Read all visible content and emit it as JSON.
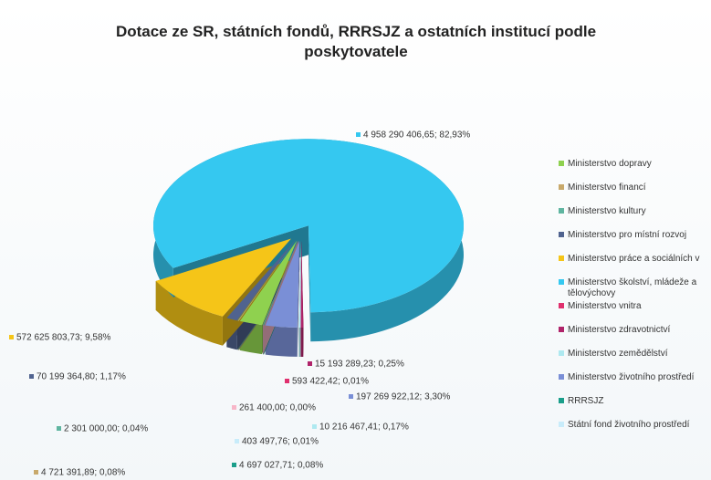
{
  "chart_data": {
    "type": "pie",
    "title": "Dotace ze SR, státních fondů, RRRSJZ a ostatních institucí podle poskytovatele",
    "categories": [
      "Ministerstvo dopravy",
      "Ministerstvo financí",
      "Ministerstvo kultury",
      "Ministerstvo pro místní rozvoj",
      "Ministerstvo práce a sociálních v",
      "Ministerstvo školství, mládeže a tělovýchovy",
      "Ministerstvo vnitra",
      "Ministerstvo zdravotnictví",
      "Ministerstvo zemědělství",
      "Ministerstvo životního prostředí",
      "RRRSJZ",
      "Státní fond životního prostředí",
      null
    ],
    "values": [
      142000000,
      4721391.89,
      2301000.0,
      70199364.8,
      572625803.73,
      4958290406.65,
      593422.42,
      15193289.23,
      10216467.41,
      197269922.12,
      4697027.71,
      403497.76,
      261400.0
    ],
    "value_labels": [
      null,
      "4 721 391,89; 0,08%",
      "2 301 000,00; 0,04%",
      "70 199 364,80; 1,17%",
      "572 625 803,73; 9,58%",
      "4 958 290 406,65; 82,93%",
      "593 422,42; 0,01%",
      "15 193 289,23; 0,25%",
      "10 216 467,41; 0,17%",
      "197 269 922,12; 3,30%",
      "4 697 027,71; 0,08%",
      "403 497,76; 0,01%",
      "261 400,00; 0,00%"
    ],
    "colors": [
      "#8fd14f",
      "#c8a96b",
      "#5fb5a0",
      "#50638f",
      "#f5c518",
      "#35c8f0",
      "#e0306e",
      "#b0246a",
      "#aee9f0",
      "#7a8fd6",
      "#1a9e8a",
      "#c8ecfa",
      "#f7b6c8"
    ],
    "legend": "right"
  }
}
